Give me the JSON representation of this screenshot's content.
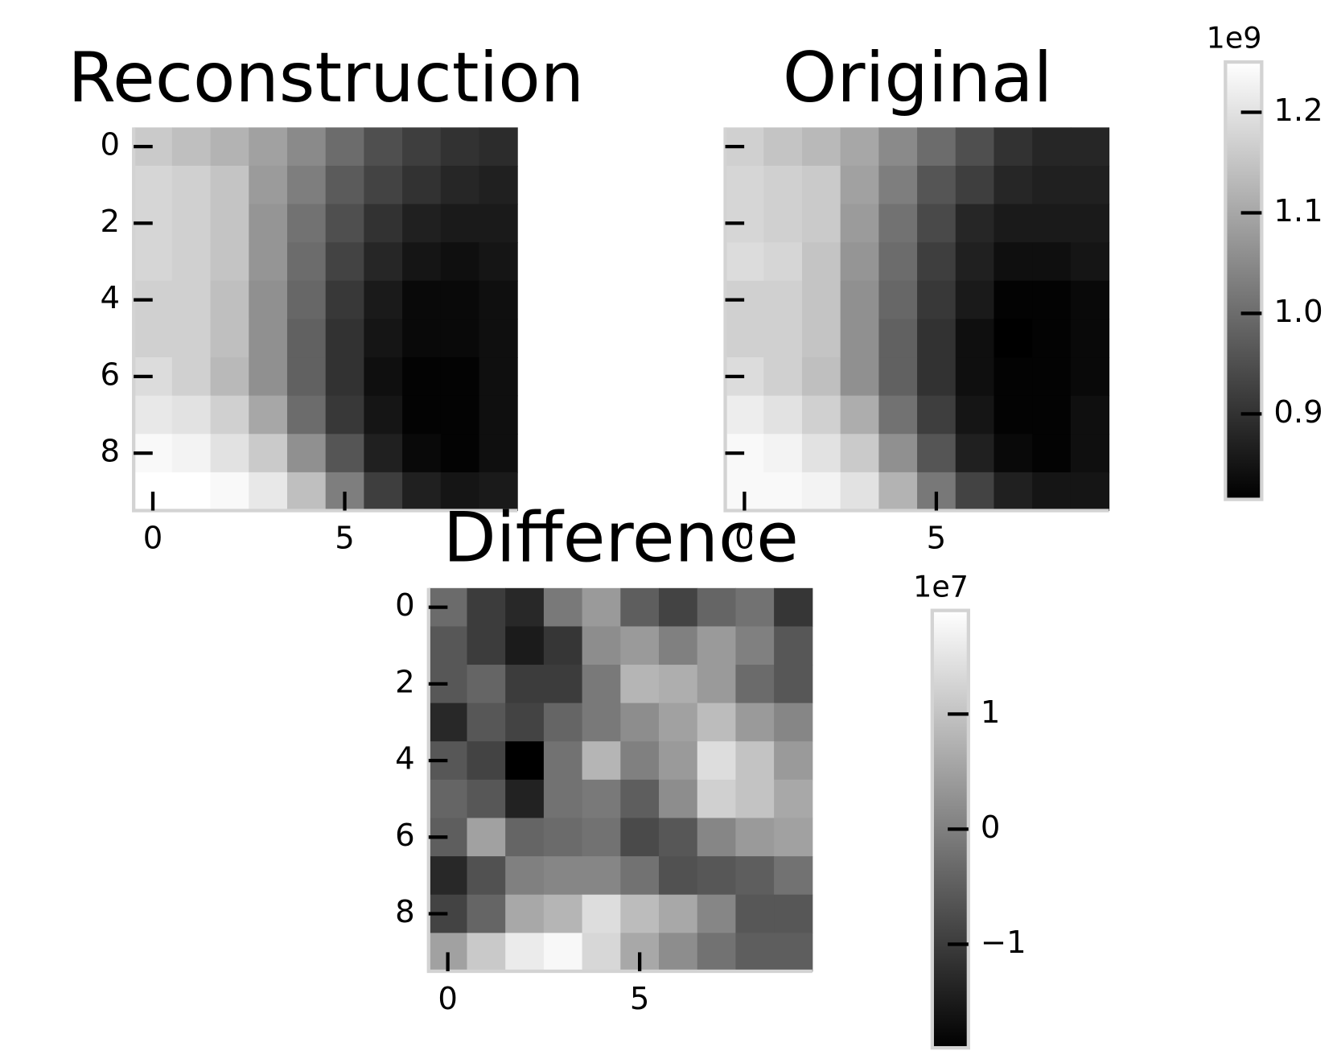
{
  "chart_data": [
    {
      "type": "heatmap",
      "title": "Reconstruction",
      "xlim": [
        -0.5,
        9.5
      ],
      "ylim": [
        9.5,
        -0.5
      ],
      "xticks": [
        0,
        5
      ],
      "yticks": [
        0,
        2,
        4,
        6,
        8
      ],
      "yticklabels": true,
      "clim": [
        0.815,
        1.25
      ],
      "values": [
        [
          1.16,
          1.14,
          1.12,
          1.09,
          1.05,
          1.0,
          0.95,
          0.92,
          0.9,
          0.89
        ],
        [
          1.18,
          1.17,
          1.15,
          1.08,
          1.03,
          0.97,
          0.93,
          0.9,
          0.88,
          0.87
        ],
        [
          1.18,
          1.17,
          1.15,
          1.07,
          1.01,
          0.95,
          0.9,
          0.87,
          0.86,
          0.86
        ],
        [
          1.18,
          1.17,
          1.15,
          1.07,
          1.0,
          0.93,
          0.88,
          0.85,
          0.84,
          0.85
        ],
        [
          1.17,
          1.17,
          1.14,
          1.06,
          0.99,
          0.91,
          0.86,
          0.83,
          0.83,
          0.84
        ],
        [
          1.17,
          1.17,
          1.14,
          1.06,
          0.98,
          0.9,
          0.85,
          0.83,
          0.83,
          0.84
        ],
        [
          1.19,
          1.17,
          1.13,
          1.06,
          0.98,
          0.9,
          0.84,
          0.82,
          0.82,
          0.84
        ],
        [
          1.21,
          1.2,
          1.17,
          1.1,
          1.0,
          0.91,
          0.85,
          0.82,
          0.82,
          0.84
        ],
        [
          1.24,
          1.23,
          1.2,
          1.16,
          1.06,
          0.96,
          0.87,
          0.83,
          0.82,
          0.84
        ],
        [
          1.25,
          1.25,
          1.24,
          1.21,
          1.14,
          1.03,
          0.92,
          0.87,
          0.85,
          0.86
        ]
      ]
    },
    {
      "type": "heatmap",
      "title": "Original",
      "xlim": [
        -0.5,
        9.5
      ],
      "ylim": [
        9.5,
        -0.5
      ],
      "xticks": [
        0,
        5
      ],
      "yticks": [
        0,
        2,
        4,
        6,
        8
      ],
      "yticklabels": false,
      "clim": [
        0.815,
        1.25
      ],
      "cticks": [
        0.9,
        {
          "value": 1,
          "label": "1.0"
        },
        1.1,
        1.2
      ],
      "offset_label": "1e9",
      "values": [
        [
          1.17,
          1.15,
          1.13,
          1.1,
          1.05,
          1.0,
          0.95,
          0.9,
          0.88,
          0.88
        ],
        [
          1.18,
          1.17,
          1.16,
          1.09,
          1.03,
          0.96,
          0.92,
          0.88,
          0.87,
          0.87
        ],
        [
          1.18,
          1.17,
          1.16,
          1.08,
          1.01,
          0.94,
          0.88,
          0.86,
          0.86,
          0.86
        ],
        [
          1.19,
          1.18,
          1.15,
          1.07,
          1.0,
          0.92,
          0.87,
          0.84,
          0.84,
          0.85
        ],
        [
          1.17,
          1.17,
          1.15,
          1.06,
          0.99,
          0.91,
          0.86,
          0.82,
          0.82,
          0.83
        ],
        [
          1.17,
          1.17,
          1.15,
          1.06,
          0.98,
          0.9,
          0.84,
          0.81,
          0.82,
          0.83
        ],
        [
          1.19,
          1.17,
          1.14,
          1.06,
          0.98,
          0.9,
          0.84,
          0.82,
          0.82,
          0.83
        ],
        [
          1.22,
          1.2,
          1.17,
          1.11,
          1.01,
          0.92,
          0.85,
          0.82,
          0.82,
          0.84
        ],
        [
          1.24,
          1.23,
          1.2,
          1.16,
          1.06,
          0.96,
          0.87,
          0.83,
          0.82,
          0.84
        ],
        [
          1.24,
          1.24,
          1.23,
          1.2,
          1.12,
          1.02,
          0.93,
          0.87,
          0.85,
          0.85
        ]
      ]
    },
    {
      "type": "heatmap",
      "title": "Difference",
      "xlim": [
        -0.5,
        9.5
      ],
      "ylim": [
        9.5,
        -0.5
      ],
      "xticks": [
        0,
        5
      ],
      "yticks": [
        0,
        2,
        4,
        6,
        8
      ],
      "yticklabels": true,
      "clim": [
        -1.9,
        1.9
      ],
      "cticks": [
        {
          "value": -1,
          "label": "−1"
        },
        0,
        1
      ],
      "offset_label": "1e7",
      "values": [
        [
          -0.3,
          -1.0,
          -1.3,
          -0.1,
          0.4,
          -0.5,
          -0.9,
          -0.4,
          -0.2,
          -1.1
        ],
        [
          -0.6,
          -1.0,
          -1.5,
          -1.1,
          0.2,
          0.4,
          0.0,
          0.4,
          0.0,
          -0.6
        ],
        [
          -0.6,
          -0.4,
          -1.0,
          -1.0,
          -0.1,
          0.8,
          0.7,
          0.4,
          -0.3,
          -0.6
        ],
        [
          -1.3,
          -0.6,
          -0.9,
          -0.4,
          -0.1,
          0.2,
          0.5,
          0.9,
          0.4,
          0.1
        ],
        [
          -0.6,
          -0.9,
          -1.9,
          -0.2,
          0.8,
          0.0,
          0.4,
          1.4,
          1.0,
          0.4
        ],
        [
          -0.4,
          -0.6,
          -1.4,
          -0.2,
          -0.1,
          -0.5,
          0.2,
          1.2,
          1.0,
          0.6
        ],
        [
          -0.5,
          0.5,
          -0.4,
          -0.3,
          -0.2,
          -0.8,
          -0.6,
          0.1,
          0.4,
          0.5
        ],
        [
          -1.3,
          -0.7,
          0.0,
          0.1,
          0.1,
          -0.2,
          -0.7,
          -0.6,
          -0.5,
          -0.2
        ],
        [
          -0.9,
          -0.4,
          0.6,
          0.8,
          1.4,
          0.9,
          0.6,
          0.1,
          -0.6,
          -0.6
        ],
        [
          0.5,
          1.1,
          1.6,
          1.8,
          1.3,
          0.6,
          0.2,
          -0.2,
          -0.5,
          -0.5
        ]
      ]
    }
  ]
}
